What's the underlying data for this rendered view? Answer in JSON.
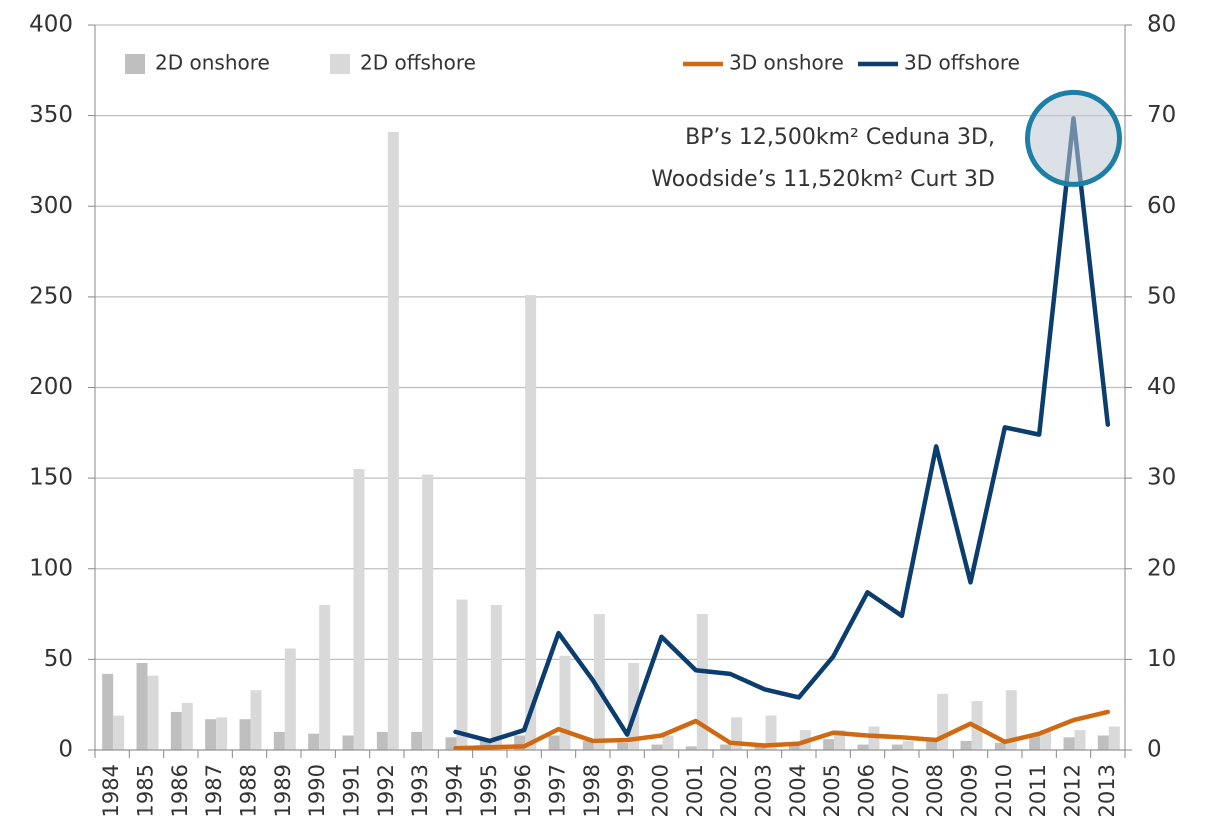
{
  "chart_data": {
    "type": "combo",
    "categories": [
      "1984",
      "1985",
      "1986",
      "1987",
      "1988",
      "1989",
      "1990",
      "1991",
      "1992",
      "1993",
      "1994",
      "1995",
      "1996",
      "1997",
      "1998",
      "1999",
      "2000",
      "2001",
      "2002",
      "2003",
      "2004",
      "2005",
      "2006",
      "2007",
      "2008",
      "2009",
      "2010",
      "2011",
      "2012",
      "2013"
    ],
    "series": [
      {
        "name": "2D onshore",
        "type": "bar",
        "color": "#bfbfbf",
        "values": [
          42,
          48,
          21,
          17,
          17,
          10,
          9,
          8,
          10,
          10,
          7,
          6,
          8,
          8,
          5,
          4,
          3,
          2,
          3,
          2,
          3,
          6,
          3,
          3,
          5,
          5,
          4,
          8,
          7,
          8
        ]
      },
      {
        "name": "2D offshore",
        "type": "bar",
        "color": "#d9d9d9",
        "values": [
          19,
          41,
          26,
          18,
          33,
          56,
          80,
          155,
          341,
          152,
          83,
          80,
          251,
          52,
          75,
          48,
          8,
          75,
          18,
          19,
          11,
          11,
          13,
          5,
          31,
          27,
          33,
          11,
          11,
          13
        ]
      },
      {
        "name": "3D onshore",
        "type": "line",
        "axis": "y2",
        "color": "#d06a12",
        "values": [
          null,
          null,
          null,
          null,
          null,
          null,
          null,
          null,
          null,
          null,
          0.2,
          0.3,
          0.4,
          2.3,
          1.0,
          1.1,
          1.6,
          3.2,
          0.8,
          0.5,
          0.7,
          1.9,
          1.6,
          1.4,
          1.1,
          2.9,
          0.9,
          1.8,
          3.3,
          4.2
        ]
      },
      {
        "name": "3D offshore",
        "type": "line",
        "axis": "y2",
        "color": "#0b3d6e",
        "values": [
          null,
          null,
          null,
          null,
          null,
          null,
          null,
          null,
          null,
          null,
          2.0,
          1.0,
          2.2,
          12.9,
          7.7,
          1.7,
          12.5,
          8.8,
          8.4,
          6.7,
          5.8,
          10.3,
          17.4,
          14.8,
          33.5,
          18.5,
          35.6,
          34.8,
          69.7,
          35.9
        ]
      }
    ],
    "ylim": [
      0,
      400
    ],
    "yticks": [
      0,
      50,
      100,
      150,
      200,
      250,
      300,
      350,
      400
    ],
    "y2lim": [
      0,
      80
    ],
    "y2ticks": [
      0,
      10,
      20,
      30,
      40,
      50,
      60,
      70,
      80
    ],
    "grid": true,
    "annotation": [
      "BP’s 12,500km² Ceduna 3D,",
      "Woodside’s 11,520km² Curt 3D"
    ]
  }
}
